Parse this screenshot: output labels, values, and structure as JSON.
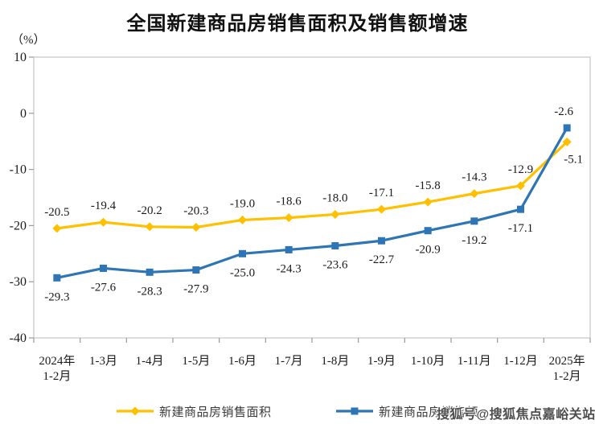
{
  "chart": {
    "title": "全国新建商品房销售面积及销售额增速",
    "unit": "（%）"
  },
  "chart_data": {
    "type": "line",
    "categories": [
      "2024年\n1-2月",
      "1-3月",
      "1-4月",
      "1-5月",
      "1-6月",
      "1-7月",
      "1-8月",
      "1-9月",
      "1-10月",
      "1-11月",
      "1-12月",
      "2025年\n1-2月"
    ],
    "series": [
      {
        "name": "新建商品房销售面积",
        "color": "#FFC000",
        "marker": "diamond",
        "values": [
          -20.5,
          -19.4,
          -20.2,
          -20.3,
          -19.0,
          -18.6,
          -18.0,
          -17.1,
          -15.8,
          -14.3,
          -12.9,
          -5.1
        ]
      },
      {
        "name": "新建商品房销售额",
        "color": "#2E75B6",
        "marker": "square",
        "values": [
          -29.3,
          -27.6,
          -28.3,
          -27.9,
          -25.0,
          -24.3,
          -23.6,
          -22.7,
          -20.9,
          -19.2,
          -17.1,
          -2.6
        ]
      }
    ],
    "ylabel": "（%）",
    "ylim": [
      -40,
      10
    ],
    "ytick_step": 10,
    "grid": false,
    "legend_position": "bottom",
    "border_color": "#c6c6c6",
    "tick_color": "#9a9a9a",
    "label_color": "#1a1a1a"
  },
  "legend": {
    "items": [
      {
        "label": "新建商品房销售面积"
      },
      {
        "label": "新建商品房销售额"
      }
    ]
  },
  "watermark": {
    "text": "搜狐号@搜狐焦点嘉峪关站"
  }
}
